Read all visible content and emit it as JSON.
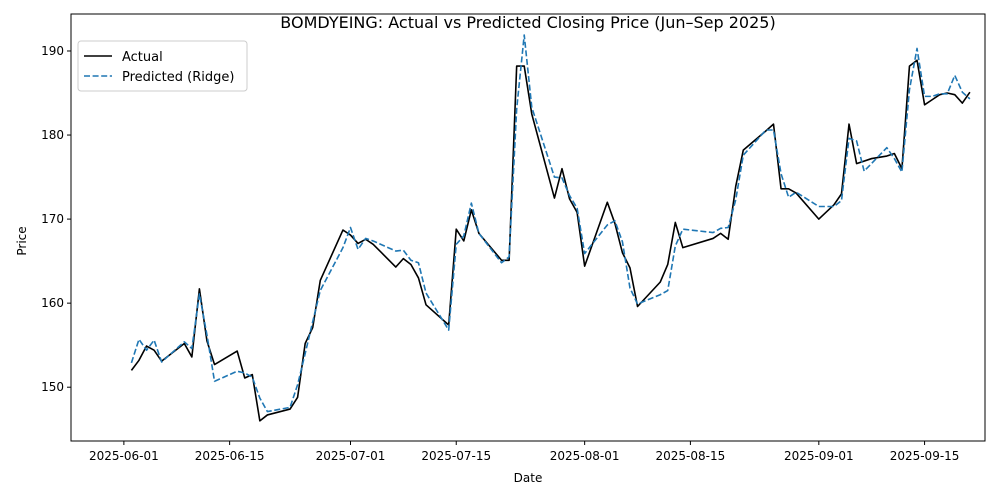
{
  "chart_data": {
    "type": "line",
    "title": "BOMDYEING: Actual vs Predicted Closing Price (Jun–Sep 2025)",
    "xlabel": "Date",
    "ylabel": "Price",
    "xlim": [
      "2025-05-25",
      "2025-09-23"
    ],
    "ylim": [
      143.6,
      194.4
    ],
    "x_ticks": [
      "2025-06-01",
      "2025-06-15",
      "2025-07-01",
      "2025-07-15",
      "2025-08-01",
      "2025-08-15",
      "2025-09-01",
      "2025-09-15"
    ],
    "y_ticks": [
      150,
      160,
      170,
      180,
      190
    ],
    "grid": false,
    "legend_position": "upper left",
    "series": [
      {
        "name": "Actual",
        "color": "#000000",
        "line_style": "solid",
        "points": [
          [
            "2025-06-02",
            152.0
          ],
          [
            "2025-06-03",
            153.2
          ],
          [
            "2025-06-04",
            154.9
          ],
          [
            "2025-06-05",
            154.4
          ],
          [
            "2025-06-06",
            153.1
          ],
          [
            "2025-06-09",
            155.2
          ],
          [
            "2025-06-10",
            153.6
          ],
          [
            "2025-06-11",
            161.7
          ],
          [
            "2025-06-12",
            155.5
          ],
          [
            "2025-06-13",
            152.7
          ],
          [
            "2025-06-16",
            154.3
          ],
          [
            "2025-06-17",
            151.1
          ],
          [
            "2025-06-18",
            151.5
          ],
          [
            "2025-06-19",
            146.0
          ],
          [
            "2025-06-20",
            146.7
          ],
          [
            "2025-06-23",
            147.4
          ],
          [
            "2025-06-24",
            148.8
          ],
          [
            "2025-06-25",
            155.2
          ],
          [
            "2025-06-26",
            157.1
          ],
          [
            "2025-06-27",
            162.7
          ],
          [
            "2025-06-30",
            168.7
          ],
          [
            "2025-07-01",
            168.1
          ],
          [
            "2025-07-02",
            167.1
          ],
          [
            "2025-07-03",
            167.6
          ],
          [
            "2025-07-04",
            167.0
          ],
          [
            "2025-07-07",
            164.3
          ],
          [
            "2025-07-08",
            165.3
          ],
          [
            "2025-07-09",
            164.6
          ],
          [
            "2025-07-10",
            163.0
          ],
          [
            "2025-07-11",
            159.8
          ],
          [
            "2025-07-14",
            157.4
          ],
          [
            "2025-07-15",
            168.8
          ],
          [
            "2025-07-16",
            167.4
          ],
          [
            "2025-07-17",
            171.1
          ],
          [
            "2025-07-18",
            168.3
          ],
          [
            "2025-07-21",
            165.1
          ],
          [
            "2025-07-22",
            165.1
          ],
          [
            "2025-07-23",
            188.2
          ],
          [
            "2025-07-24",
            188.2
          ],
          [
            "2025-07-25",
            182.5
          ],
          [
            "2025-07-28",
            172.5
          ],
          [
            "2025-07-29",
            176.0
          ],
          [
            "2025-07-30",
            172.4
          ],
          [
            "2025-07-31",
            170.8
          ],
          [
            "2025-08-01",
            164.4
          ],
          [
            "2025-08-04",
            172.0
          ],
          [
            "2025-08-05",
            169.5
          ],
          [
            "2025-08-06",
            166.0
          ],
          [
            "2025-08-07",
            164.2
          ],
          [
            "2025-08-08",
            159.6
          ],
          [
            "2025-08-11",
            162.5
          ],
          [
            "2025-08-12",
            164.6
          ],
          [
            "2025-08-13",
            169.6
          ],
          [
            "2025-08-14",
            166.6
          ],
          [
            "2025-08-18",
            167.7
          ],
          [
            "2025-08-19",
            168.3
          ],
          [
            "2025-08-20",
            167.6
          ],
          [
            "2025-08-21",
            173.9
          ],
          [
            "2025-08-22",
            178.2
          ],
          [
            "2025-08-25",
            180.5
          ],
          [
            "2025-08-26",
            181.3
          ],
          [
            "2025-08-27",
            173.6
          ],
          [
            "2025-08-28",
            173.6
          ],
          [
            "2025-08-29",
            173.1
          ],
          [
            "2025-09-01",
            170.0
          ],
          [
            "2025-09-03",
            171.7
          ],
          [
            "2025-09-04",
            173.0
          ],
          [
            "2025-09-05",
            181.3
          ],
          [
            "2025-09-06",
            176.6
          ],
          [
            "2025-09-08",
            177.2
          ],
          [
            "2025-09-10",
            177.5
          ],
          [
            "2025-09-11",
            177.8
          ],
          [
            "2025-09-12",
            176.0
          ],
          [
            "2025-09-13",
            188.2
          ],
          [
            "2025-09-14",
            188.9
          ],
          [
            "2025-09-15",
            183.6
          ],
          [
            "2025-09-16",
            184.2
          ],
          [
            "2025-09-17",
            184.8
          ],
          [
            "2025-09-18",
            185.0
          ],
          [
            "2025-09-19",
            184.8
          ],
          [
            "2025-09-20",
            183.8
          ],
          [
            "2025-09-21",
            185.1
          ]
        ]
      },
      {
        "name": "Predicted (Ridge)",
        "color": "#1f77b4",
        "line_style": "dashed",
        "points": [
          [
            "2025-06-02",
            152.9
          ],
          [
            "2025-06-03",
            155.7
          ],
          [
            "2025-06-04",
            154.4
          ],
          [
            "2025-06-05",
            155.6
          ],
          [
            "2025-06-06",
            153.0
          ],
          [
            "2025-06-09",
            155.4
          ],
          [
            "2025-06-10",
            154.6
          ],
          [
            "2025-06-11",
            161.1
          ],
          [
            "2025-06-12",
            156.2
          ],
          [
            "2025-06-13",
            150.7
          ],
          [
            "2025-06-16",
            151.9
          ],
          [
            "2025-06-17",
            151.7
          ],
          [
            "2025-06-18",
            151.2
          ],
          [
            "2025-06-19",
            148.7
          ],
          [
            "2025-06-20",
            147.1
          ],
          [
            "2025-06-23",
            147.6
          ],
          [
            "2025-06-24",
            150.3
          ],
          [
            "2025-06-25",
            154.0
          ],
          [
            "2025-06-26",
            157.8
          ],
          [
            "2025-06-27",
            161.5
          ],
          [
            "2025-06-30",
            166.6
          ],
          [
            "2025-07-01",
            169.0
          ],
          [
            "2025-07-02",
            166.4
          ],
          [
            "2025-07-03",
            167.7
          ],
          [
            "2025-07-04",
            167.4
          ],
          [
            "2025-07-07",
            166.2
          ],
          [
            "2025-07-08",
            166.3
          ],
          [
            "2025-07-09",
            165.1
          ],
          [
            "2025-07-10",
            164.8
          ],
          [
            "2025-07-11",
            161.2
          ],
          [
            "2025-07-14",
            156.8
          ],
          [
            "2025-07-15",
            167.0
          ],
          [
            "2025-07-16",
            168.0
          ],
          [
            "2025-07-17",
            171.9
          ],
          [
            "2025-07-18",
            168.3
          ],
          [
            "2025-07-21",
            164.8
          ],
          [
            "2025-07-22",
            165.5
          ],
          [
            "2025-07-23",
            183.1
          ],
          [
            "2025-07-24",
            191.9
          ],
          [
            "2025-07-25",
            183.3
          ],
          [
            "2025-07-28",
            175.0
          ],
          [
            "2025-07-29",
            174.9
          ],
          [
            "2025-07-30",
            172.8
          ],
          [
            "2025-07-31",
            171.3
          ],
          [
            "2025-08-01",
            165.9
          ],
          [
            "2025-08-04",
            169.3
          ],
          [
            "2025-08-05",
            169.8
          ],
          [
            "2025-08-06",
            167.3
          ],
          [
            "2025-08-07",
            161.8
          ],
          [
            "2025-08-08",
            159.9
          ],
          [
            "2025-08-11",
            161.0
          ],
          [
            "2025-08-12",
            161.5
          ],
          [
            "2025-08-13",
            166.8
          ],
          [
            "2025-08-14",
            168.8
          ],
          [
            "2025-08-18",
            168.4
          ],
          [
            "2025-08-19",
            168.9
          ],
          [
            "2025-08-20",
            169.0
          ],
          [
            "2025-08-21",
            172.3
          ],
          [
            "2025-08-22",
            177.6
          ],
          [
            "2025-08-25",
            180.6
          ],
          [
            "2025-08-26",
            180.6
          ],
          [
            "2025-08-27",
            175.4
          ],
          [
            "2025-08-28",
            172.6
          ],
          [
            "2025-08-29",
            173.2
          ],
          [
            "2025-09-01",
            171.5
          ],
          [
            "2025-09-03",
            171.5
          ],
          [
            "2025-09-04",
            172.2
          ],
          [
            "2025-09-05",
            179.6
          ],
          [
            "2025-09-06",
            179.3
          ],
          [
            "2025-09-07",
            175.7
          ],
          [
            "2025-09-10",
            178.5
          ],
          [
            "2025-09-11",
            177.2
          ],
          [
            "2025-09-12",
            175.6
          ],
          [
            "2025-09-13",
            185.4
          ],
          [
            "2025-09-14",
            190.3
          ],
          [
            "2025-09-15",
            184.6
          ],
          [
            "2025-09-16",
            184.6
          ],
          [
            "2025-09-17",
            184.9
          ],
          [
            "2025-09-18",
            184.9
          ],
          [
            "2025-09-19",
            187.1
          ],
          [
            "2025-09-20",
            185.1
          ],
          [
            "2025-09-21",
            184.3
          ]
        ]
      }
    ]
  }
}
